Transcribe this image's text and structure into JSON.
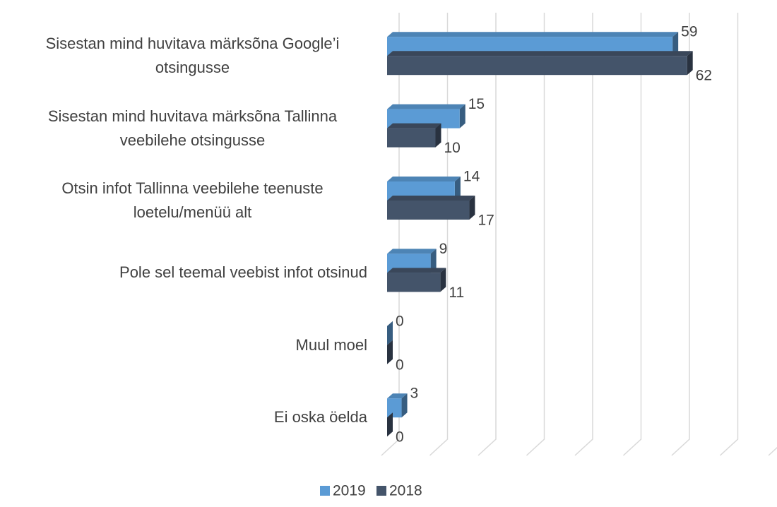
{
  "chart_data": {
    "type": "bar3d",
    "orientation": "horizontal",
    "categories": [
      "Sisestan mind huvitava märksõna Google’i otsingusse",
      "Sisestan mind huvitava märksõna Tallinna veebilehe otsingusse",
      "Otsin infot Tallinna veebilehe teenuste loetelu/menüü alt",
      "Pole sel teemal veebist infot otsinud",
      "Muul moel",
      "Ei oska öelda"
    ],
    "series": [
      {
        "name": "2019",
        "color": "#5b9bd5",
        "values": [
          59,
          15,
          14,
          9,
          0,
          3
        ]
      },
      {
        "name": "2018",
        "color": "#44546a",
        "values": [
          62,
          10,
          17,
          11,
          0,
          0
        ]
      }
    ],
    "xlim": [
      0,
      80
    ],
    "xticks": [
      0,
      10,
      20,
      30,
      40,
      50,
      60,
      70,
      80
    ],
    "grid": true,
    "legend": "bottom"
  }
}
